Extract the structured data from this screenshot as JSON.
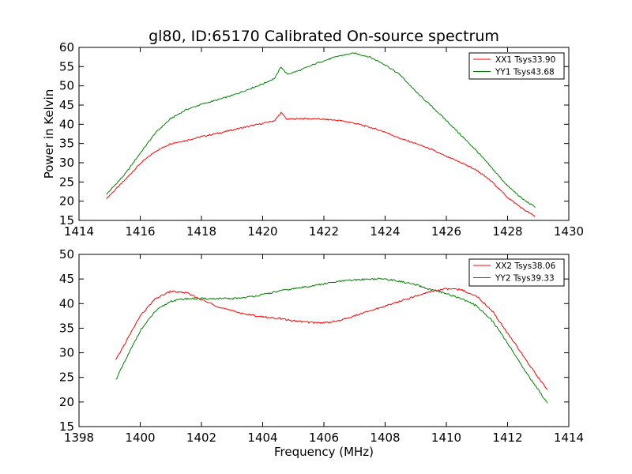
{
  "figure": {
    "title": "gl80, ID:65170 Calibrated On-source spectrum"
  },
  "chart_data": [
    {
      "type": "line",
      "title": "gl80, ID:65170 Calibrated On-source spectrum",
      "xlabel": "",
      "ylabel": "Power in Kelvin",
      "xlim": [
        1414,
        1430
      ],
      "ylim": [
        15,
        60
      ],
      "xticks": [
        1414,
        1416,
        1418,
        1420,
        1422,
        1424,
        1426,
        1428,
        1430
      ],
      "yticks": [
        15,
        20,
        25,
        30,
        35,
        40,
        45,
        50,
        55,
        60
      ],
      "grid": false,
      "legend_position": "top-right",
      "series": [
        {
          "name": "XX1 Tsys33.90",
          "color": "#ff0000",
          "x": [
            1414.9,
            1415.5,
            1416.0,
            1416.5,
            1417.0,
            1417.5,
            1418.0,
            1418.5,
            1419.0,
            1419.5,
            1420.0,
            1420.4,
            1420.6,
            1420.8,
            1421.2,
            1421.8,
            1422.5,
            1423.0,
            1423.5,
            1424.0,
            1424.5,
            1425.0,
            1425.5,
            1426.0,
            1426.5,
            1427.0,
            1427.5,
            1428.0,
            1428.5,
            1428.9
          ],
          "y": [
            20.7,
            25.5,
            29.8,
            33.0,
            35.0,
            35.8,
            36.8,
            37.6,
            38.5,
            39.4,
            40.2,
            41.0,
            43.0,
            41.3,
            41.5,
            41.4,
            41.0,
            40.3,
            39.2,
            38.0,
            36.3,
            35.0,
            33.5,
            31.6,
            30.0,
            28.0,
            25.0,
            21.0,
            18.0,
            16.0
          ]
        },
        {
          "name": "YY1 Tsys43.68",
          "color": "#008000",
          "x": [
            1414.9,
            1415.5,
            1416.0,
            1416.5,
            1417.0,
            1417.5,
            1418.0,
            1418.5,
            1419.0,
            1419.5,
            1420.0,
            1420.4,
            1420.6,
            1420.8,
            1421.2,
            1421.8,
            1422.5,
            1423.0,
            1423.5,
            1424.0,
            1424.5,
            1425.0,
            1425.5,
            1426.0,
            1426.5,
            1427.0,
            1427.5,
            1428.0,
            1428.5,
            1428.9
          ],
          "y": [
            21.8,
            27.0,
            32.5,
            37.8,
            41.5,
            43.8,
            45.2,
            46.3,
            47.5,
            49.0,
            50.5,
            52.0,
            55.0,
            53.0,
            54.0,
            56.0,
            57.8,
            58.5,
            57.5,
            55.5,
            52.8,
            48.5,
            44.8,
            41.0,
            37.0,
            33.0,
            28.5,
            24.0,
            20.5,
            18.5
          ]
        }
      ]
    },
    {
      "type": "line",
      "title": "",
      "xlabel": "Frequency (MHz)",
      "ylabel": "",
      "xlim": [
        1398,
        1414
      ],
      "ylim": [
        15,
        50
      ],
      "xticks": [
        1398,
        1400,
        1402,
        1404,
        1406,
        1408,
        1410,
        1412,
        1414
      ],
      "yticks": [
        15,
        20,
        25,
        30,
        35,
        40,
        45,
        50
      ],
      "grid": false,
      "legend_position": "top-right",
      "series": [
        {
          "name": "XX2 Tsys38.06",
          "color": "#ff0000",
          "x": [
            1399.2,
            1399.6,
            1400.0,
            1400.5,
            1401.0,
            1401.5,
            1402.0,
            1402.5,
            1403.0,
            1403.5,
            1404.0,
            1404.5,
            1405.0,
            1405.5,
            1406.0,
            1406.5,
            1407.0,
            1407.5,
            1408.0,
            1408.5,
            1409.0,
            1409.5,
            1410.0,
            1410.5,
            1411.0,
            1411.5,
            1412.0,
            1412.5,
            1413.0,
            1413.3
          ],
          "y": [
            28.5,
            33.0,
            37.5,
            41.0,
            42.5,
            42.2,
            40.8,
            39.5,
            38.5,
            37.8,
            37.3,
            37.0,
            36.5,
            36.2,
            36.1,
            36.5,
            37.5,
            38.5,
            39.5,
            40.5,
            41.5,
            42.5,
            43.0,
            42.8,
            41.5,
            38.5,
            34.0,
            29.5,
            25.0,
            22.5
          ]
        },
        {
          "name": "YY2 Tsys39.33",
          "color": "#008000",
          "x": [
            1399.2,
            1399.6,
            1400.0,
            1400.5,
            1401.0,
            1401.5,
            1402.0,
            1402.5,
            1403.0,
            1403.5,
            1404.0,
            1404.5,
            1405.0,
            1405.5,
            1406.0,
            1406.5,
            1407.0,
            1407.5,
            1408.0,
            1408.5,
            1409.0,
            1409.5,
            1410.0,
            1410.5,
            1411.0,
            1411.5,
            1412.0,
            1412.5,
            1413.0,
            1413.3
          ],
          "y": [
            24.5,
            29.5,
            34.5,
            38.5,
            40.5,
            41.0,
            41.0,
            41.0,
            41.0,
            41.3,
            41.8,
            42.5,
            43.0,
            43.5,
            44.0,
            44.5,
            44.8,
            45.0,
            45.0,
            44.5,
            43.8,
            42.8,
            42.0,
            41.0,
            39.5,
            36.5,
            32.0,
            27.0,
            22.5,
            19.8
          ]
        }
      ]
    }
  ]
}
